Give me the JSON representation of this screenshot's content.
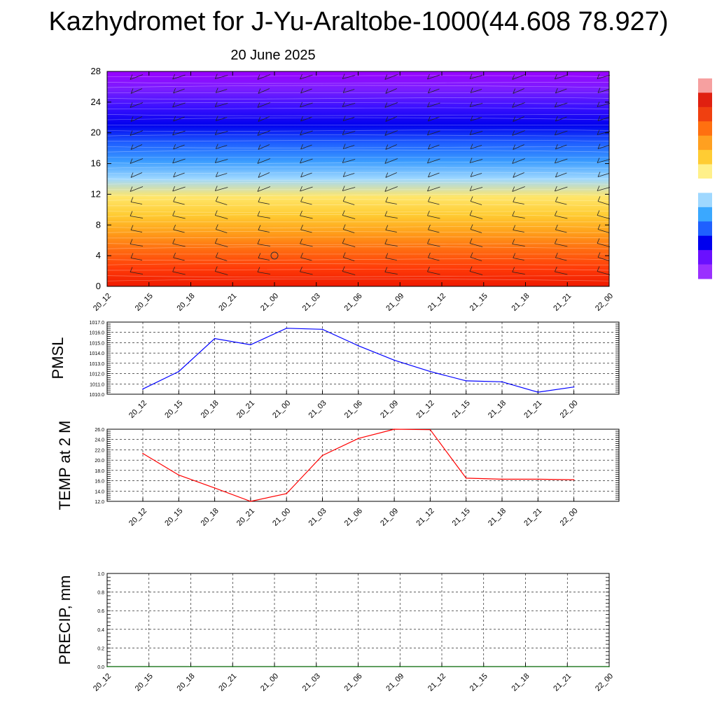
{
  "header": {
    "title": "Kazhydromet for J-Yu-Araltobe-1000(44.608 78.927)",
    "date": "20 June 2025"
  },
  "chart_data": [
    {
      "type": "heatmap",
      "name": "cross-section",
      "x_categories": [
        "20_12",
        "20_15",
        "20_18",
        "20_21",
        "21_00",
        "21_03",
        "21_06",
        "21_09",
        "21_12",
        "21_15",
        "21_18",
        "21_21",
        "22_00"
      ],
      "y_ticks": [
        0,
        4,
        8,
        12,
        16,
        20,
        24,
        28
      ],
      "ylim": [
        0,
        28
      ],
      "color_scale": [
        "#9a00ff",
        "#7a1eff",
        "#3a10ff",
        "#0000ee",
        "#1f5fff",
        "#3a9cff",
        "#9fd8ff",
        "#ffe66a",
        "#ffcc33",
        "#ff9f1a",
        "#ff6a10",
        "#ff3a08",
        "#ee1a00"
      ],
      "colorbar_colors": [
        "#f6a0a0",
        "#e02010",
        "#f04010",
        "#ff7010",
        "#ffa020",
        "#ffcc33",
        "#fff08a",
        "#ffffff",
        "#9fd8ff",
        "#3aa8ff",
        "#1f60ff",
        "#0000ee",
        "#6a10ff",
        "#9a30ff"
      ],
      "annotations": [
        "0"
      ]
    },
    {
      "type": "line",
      "ylabel": "PMSL",
      "x": [
        "20_12",
        "20_15",
        "20_18",
        "20_21",
        "21_00",
        "21_03",
        "21_06",
        "21_09",
        "21_12",
        "21_15",
        "21_18",
        "21_21",
        "22_00"
      ],
      "y_ticks": [
        "1010.0",
        "1011.0",
        "1012.0",
        "1013.0",
        "1014.0",
        "1015.0",
        "1016.0",
        "1017.0"
      ],
      "ylim": [
        1010,
        1017
      ],
      "color": "#0000ff",
      "values": [
        1010.5,
        1012.2,
        1015.4,
        1014.8,
        1016.4,
        1016.3,
        1014.7,
        1013.3,
        1012.2,
        1011.3,
        1011.2,
        1010.2,
        1010.7
      ]
    },
    {
      "type": "line",
      "ylabel": "TEMP at 2 M",
      "x": [
        "20_12",
        "20_15",
        "20_18",
        "20_21",
        "21_00",
        "21_03",
        "21_06",
        "21_09",
        "21_12",
        "21_15",
        "21_18",
        "21_21",
        "22_00"
      ],
      "y_ticks": [
        "12.0",
        "14.0",
        "16.0",
        "18.0",
        "20.0",
        "22.0",
        "24.0",
        "26.0"
      ],
      "ylim": [
        12,
        26
      ],
      "color": "#ff0000",
      "values": [
        21.3,
        17.1,
        14.6,
        12.0,
        13.5,
        20.9,
        24.2,
        26.0,
        25.9,
        16.5,
        16.3,
        16.3,
        16.2
      ]
    },
    {
      "type": "line",
      "ylabel": "PRECIP, mm",
      "x": [
        "20_12",
        "20_15",
        "20_18",
        "20_21",
        "21_00",
        "21_03",
        "21_06",
        "21_09",
        "21_12",
        "21_15",
        "21_18",
        "21_21",
        "22_00"
      ],
      "y_ticks": [
        "0.0",
        "0.2",
        "0.4",
        "0.6",
        "0.8",
        "1.0"
      ],
      "ylim": [
        0,
        1
      ],
      "color": "#006400",
      "values": [
        0,
        0,
        0,
        0,
        0,
        0,
        0,
        0,
        0,
        0,
        0,
        0,
        0
      ]
    }
  ]
}
